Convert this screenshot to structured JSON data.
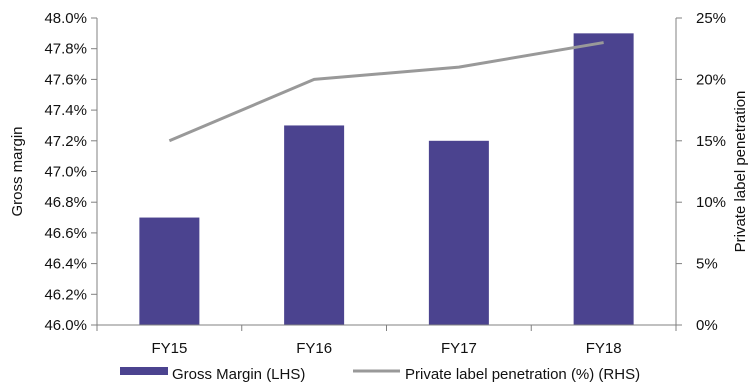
{
  "chart_data": {
    "type": "bar",
    "categories": [
      "FY15",
      "FY16",
      "FY17",
      "FY18"
    ],
    "series": [
      {
        "name": "Gross Margin (LHS)",
        "type": "bar",
        "axis": "left",
        "color": "#4B438F",
        "values": [
          46.7,
          47.3,
          47.2,
          47.9
        ]
      },
      {
        "name": "Private label penetration (%) (RHS)",
        "type": "line",
        "axis": "right",
        "color": "#999999",
        "values": [
          15,
          20,
          21,
          23
        ]
      }
    ],
    "ylabel": "Gross margin",
    "y2label": "Private label penetration",
    "ylim": [
      46.0,
      48.0
    ],
    "y2lim": [
      0,
      25
    ],
    "yticks": [
      "46.0%",
      "46.2%",
      "46.4%",
      "46.6%",
      "46.8%",
      "47.0%",
      "47.2%",
      "47.4%",
      "47.6%",
      "47.8%",
      "48.0%"
    ],
    "y2ticks": [
      "0%",
      "5%",
      "10%",
      "15%",
      "20%",
      "25%"
    ],
    "grid": false,
    "legend_position": "bottom"
  }
}
